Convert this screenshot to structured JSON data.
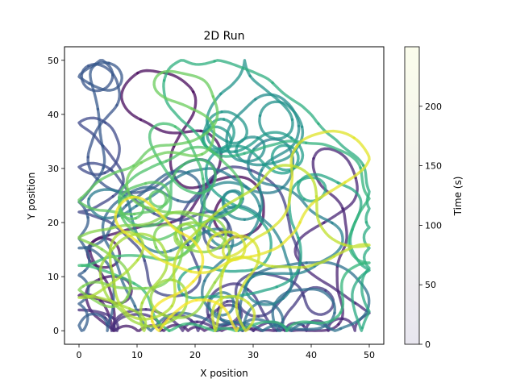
{
  "chart_data": {
    "type": "line",
    "title": "2D Run",
    "xlabel": "X position",
    "ylabel": "Y position",
    "xlim": [
      -2.5,
      52.5
    ],
    "ylim": [
      -2.5,
      52.5
    ],
    "xticks": [
      0,
      10,
      20,
      30,
      40,
      50
    ],
    "yticks": [
      0,
      10,
      20,
      30,
      40,
      50
    ],
    "trajectory": {
      "x_range": [
        0,
        50
      ],
      "y_range": [
        0,
        50
      ],
      "time_range": [
        0,
        250
      ],
      "colormap": "viridis",
      "line_opacity": 0.75
    },
    "colorbar": {
      "label": "Time (s)",
      "range": [
        0,
        250
      ],
      "ticks": [
        0,
        50,
        100,
        150,
        200
      ],
      "colors": [
        "#e8e6ef",
        "#fbfdec"
      ]
    },
    "grid": false,
    "legend": "none"
  }
}
